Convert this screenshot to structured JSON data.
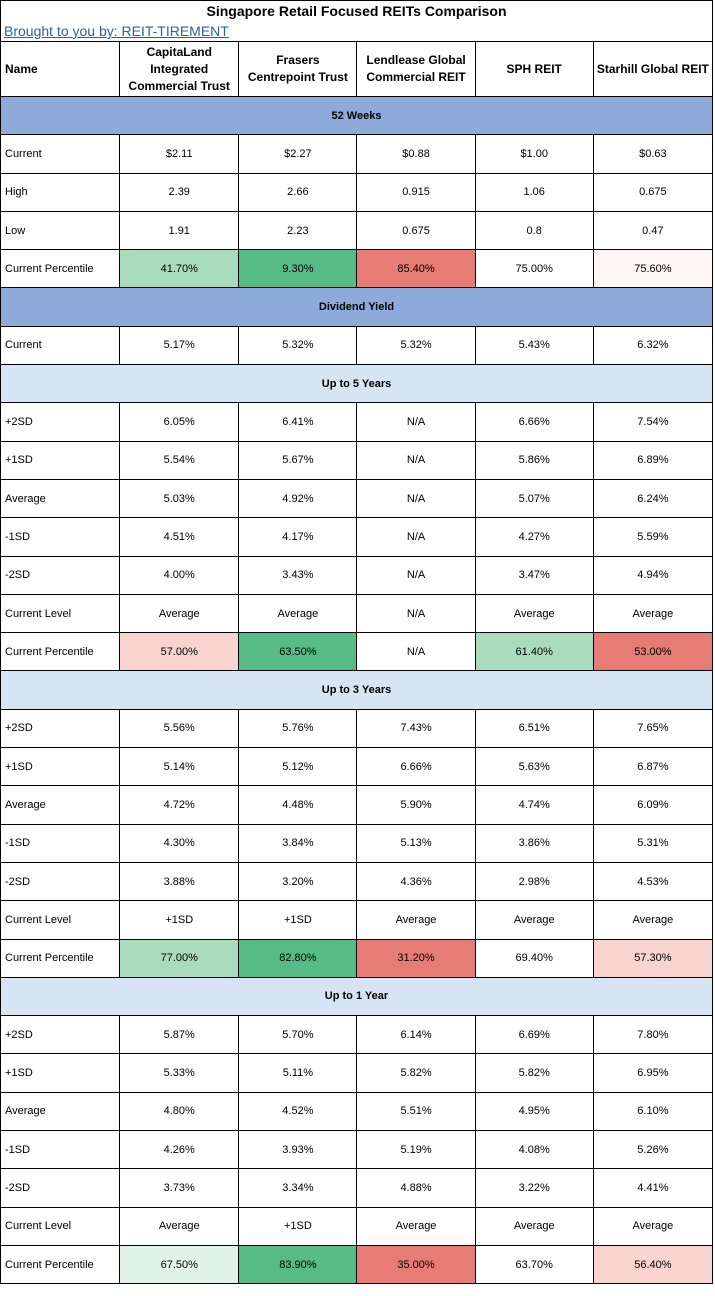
{
  "title": "Singapore Retail Focused REITs Comparison",
  "credit": "Brought to you by: REIT-TIREMENT",
  "columns": [
    "Name",
    "CapitaLand Integrated Commercial Trust",
    "Frasers Centrepoint Trust",
    "Lendlease Global Commercial REIT",
    "SPH REIT",
    "Starhill Global REIT"
  ],
  "sections": [
    {
      "title": "52 Weeks",
      "style": "dark",
      "rows": [
        {
          "label": "Current",
          "values": [
            "$2.11",
            "$2.27",
            "$0.88",
            "$1.00",
            "$0.63"
          ]
        },
        {
          "label": "High",
          "values": [
            "2.39",
            "2.66",
            "0.915",
            "1.06",
            "0.675"
          ]
        },
        {
          "label": "Low",
          "values": [
            "1.91",
            "2.23",
            "0.675",
            "0.8",
            "0.47"
          ]
        },
        {
          "label": "Current Percentile",
          "values": [
            "41.70%",
            "9.30%",
            "85.40%",
            "75.00%",
            "75.60%"
          ],
          "colors": [
            "#a8dcbd",
            "#57bb85",
            "#e67c73",
            "#ffffff",
            "#fef6f5"
          ]
        }
      ]
    },
    {
      "title": "Dividend Yield",
      "style": "dark",
      "rows": [
        {
          "label": "Current",
          "values": [
            "5.17%",
            "5.32%",
            "5.32%",
            "5.43%",
            "6.32%"
          ]
        }
      ]
    },
    {
      "title": "Up to 5 Years",
      "style": "light",
      "rows": [
        {
          "label": "+2SD",
          "values": [
            "6.05%",
            "6.41%",
            "N/A",
            "6.66%",
            "7.54%"
          ]
        },
        {
          "label": "+1SD",
          "values": [
            "5.54%",
            "5.67%",
            "N/A",
            "5.86%",
            "6.89%"
          ]
        },
        {
          "label": "Average",
          "values": [
            "5.03%",
            "4.92%",
            "N/A",
            "5.07%",
            "6.24%"
          ]
        },
        {
          "label": "-1SD",
          "values": [
            "4.51%",
            "4.17%",
            "N/A",
            "4.27%",
            "5.59%"
          ]
        },
        {
          "label": "-2SD",
          "values": [
            "4.00%",
            "3.43%",
            "N/A",
            "3.47%",
            "4.94%"
          ]
        },
        {
          "label": "Current Level",
          "values": [
            "Average",
            "Average",
            "N/A",
            "Average",
            "Average"
          ]
        },
        {
          "label": "Current Percentile",
          "values": [
            "57.00%",
            "63.50%",
            "N/A",
            "61.40%",
            "53.00%"
          ],
          "colors": [
            "#f8d3d0",
            "#57bb85",
            "#ffffff",
            "#a8dcbd",
            "#e67c73"
          ]
        }
      ]
    },
    {
      "title": "Up to 3 Years",
      "style": "light",
      "rows": [
        {
          "label": "+2SD",
          "values": [
            "5.56%",
            "5.76%",
            "7.43%",
            "6.51%",
            "7.65%"
          ]
        },
        {
          "label": "+1SD",
          "values": [
            "5.14%",
            "5.12%",
            "6.66%",
            "5.63%",
            "6.87%"
          ]
        },
        {
          "label": "Average",
          "values": [
            "4.72%",
            "4.48%",
            "5.90%",
            "4.74%",
            "6.09%"
          ]
        },
        {
          "label": "-1SD",
          "values": [
            "4.30%",
            "3.84%",
            "5.13%",
            "3.86%",
            "5.31%"
          ]
        },
        {
          "label": "-2SD",
          "values": [
            "3.88%",
            "3.20%",
            "4.36%",
            "2.98%",
            "4.53%"
          ]
        },
        {
          "label": "Current Level",
          "values": [
            "+1SD",
            "+1SD",
            "Average",
            "Average",
            "Average"
          ]
        },
        {
          "label": "Current Percentile",
          "values": [
            "77.00%",
            "82.80%",
            "31.20%",
            "69.40%",
            "57.30%"
          ],
          "colors": [
            "#a8dcbd",
            "#57bb85",
            "#e67c73",
            "#ffffff",
            "#f8d3d0"
          ]
        }
      ]
    },
    {
      "title": "Up to 1 Year",
      "style": "light",
      "rows": [
        {
          "label": "+2SD",
          "values": [
            "5.87%",
            "5.70%",
            "6.14%",
            "6.69%",
            "7.80%"
          ]
        },
        {
          "label": "+1SD",
          "values": [
            "5.33%",
            "5.11%",
            "5.82%",
            "5.82%",
            "6.95%"
          ]
        },
        {
          "label": "Average",
          "values": [
            "4.80%",
            "4.52%",
            "5.51%",
            "4.95%",
            "6.10%"
          ]
        },
        {
          "label": "-1SD",
          "values": [
            "4.26%",
            "3.93%",
            "5.19%",
            "4.08%",
            "5.26%"
          ]
        },
        {
          "label": "-2SD",
          "values": [
            "3.73%",
            "3.34%",
            "4.88%",
            "3.22%",
            "4.41%"
          ]
        },
        {
          "label": "Current Level",
          "values": [
            "Average",
            "+1SD",
            "Average",
            "Average",
            "Average"
          ]
        },
        {
          "label": "Current Percentile",
          "values": [
            "67.50%",
            "83.90%",
            "35.00%",
            "63.70%",
            "56.40%"
          ],
          "colors": [
            "#e1f3e8",
            "#57bb85",
            "#e67c73",
            "#ffffff",
            "#f8d3d0"
          ]
        }
      ]
    }
  ]
}
